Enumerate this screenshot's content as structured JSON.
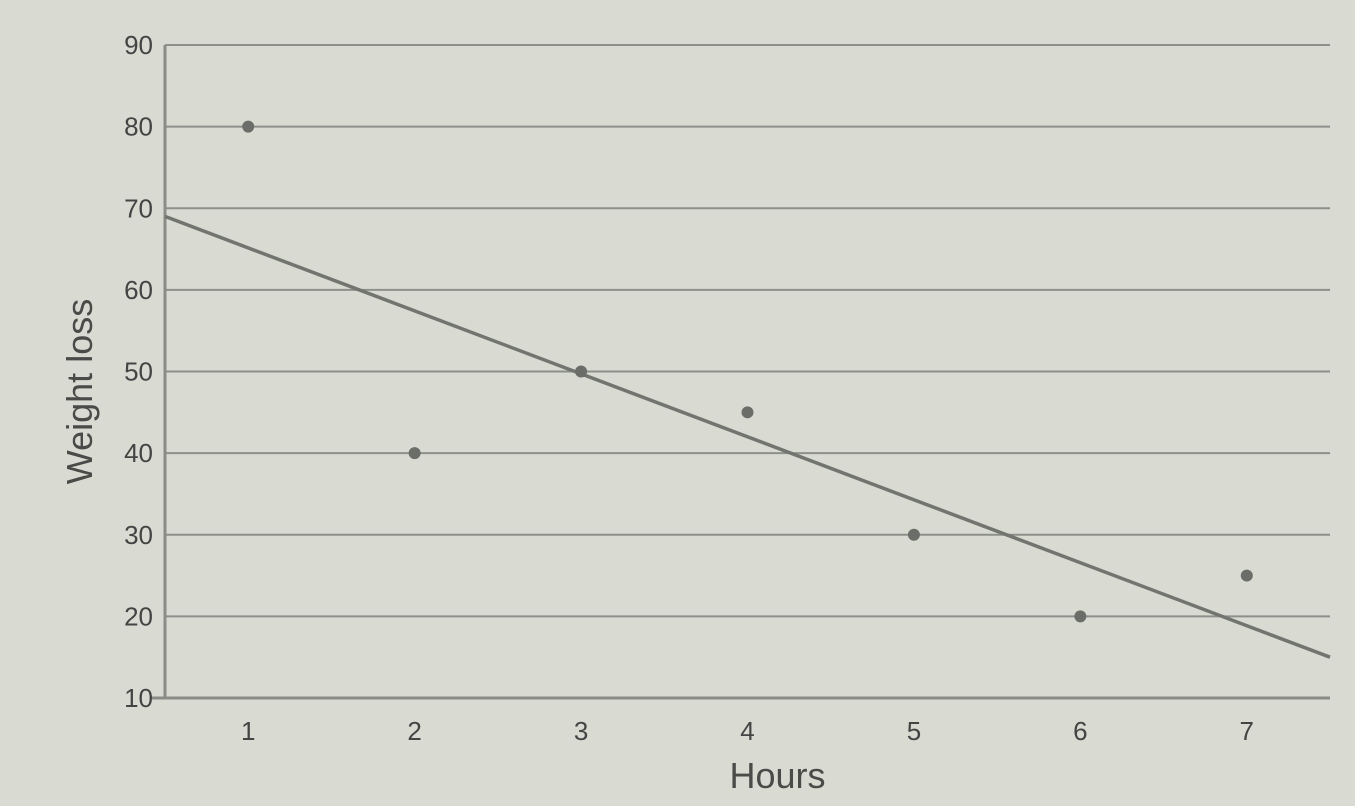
{
  "chart_data": {
    "type": "scatter",
    "title": "",
    "xlabel": "Hours",
    "ylabel": "Weight loss",
    "x_ticks": [
      "1",
      "2",
      "3",
      "4",
      "5",
      "6",
      "7"
    ],
    "y_ticks": [
      "10",
      "20",
      "30",
      "40",
      "50",
      "60",
      "70",
      "80",
      "90"
    ],
    "xlim": [
      0.5,
      7.5
    ],
    "ylim": [
      10,
      90
    ],
    "grid": "horizontal",
    "legend": "none",
    "series": [
      {
        "points": [
          {
            "x": 1,
            "y": 80
          },
          {
            "x": 2,
            "y": 40
          },
          {
            "x": 3,
            "y": 50
          },
          {
            "x": 4,
            "y": 45
          },
          {
            "x": 5,
            "y": 30
          },
          {
            "x": 6,
            "y": 20
          },
          {
            "x": 7,
            "y": 25
          }
        ]
      }
    ],
    "trendline": {
      "x_start": 0.5,
      "y_start": 69,
      "x_end": 7.5,
      "y_end": 15
    }
  }
}
